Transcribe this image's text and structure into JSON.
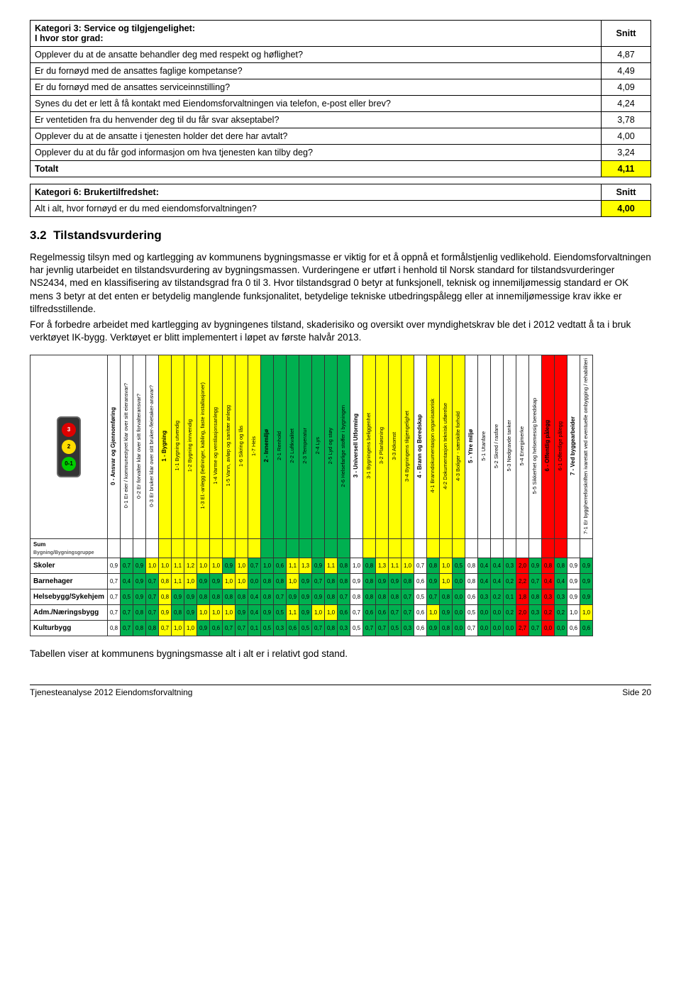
{
  "tableA": {
    "header": {
      "left": "Kategori 3: Service og tilgjengelighet:\nI hvor stor grad:",
      "right": "Snitt"
    },
    "rows": [
      {
        "q": "Opplever du at de ansatte behandler deg med respekt og høflighet?",
        "v": "4,87"
      },
      {
        "q": "Er du fornøyd med de ansattes faglige kompetanse?",
        "v": "4,49"
      },
      {
        "q": "Er du fornøyd med de ansattes serviceinnstilling?",
        "v": "4,09"
      },
      {
        "q": "Synes du det er lett å få kontakt med Eiendomsforvaltningen via telefon, e-post eller brev?",
        "v": "4,24"
      },
      {
        "q": "Er ventetiden fra du henvender deg til du får svar akseptabel?",
        "v": "3,78"
      },
      {
        "q": "Opplever du at de ansatte i tjenesten holder det dere har avtalt?",
        "v": "4,00"
      },
      {
        "q": "Opplever du at du får god informasjon om hva tjenesten kan tilby deg?",
        "v": "3,24"
      }
    ],
    "total": {
      "label": "Totalt",
      "v": "4,11"
    }
  },
  "tableB": {
    "header": {
      "left": "Kategori 6: Brukertilfredshet:",
      "right": "Snitt"
    },
    "rows": [
      {
        "q": "Alt i alt, hvor fornøyd er du med eiendomsforvaltningen?",
        "v": "4,00"
      }
    ]
  },
  "sec": {
    "num": "3.2",
    "title": "Tilstandsvurdering"
  },
  "para1": "Regelmessig tilsyn med og kartlegging av kommunens bygningsmasse er viktig for et å oppnå et formålstjenlig vedlikehold.  Eiendomsforvaltningen har jevnlig utarbeidet en tilstandsvurdering av bygningsmassen.  Vurderingene er utført i henhold til Norsk standard for tilstandsvurderinger NS2434, med en klassifisering av tilstandsgrad fra 0 til 3.  Hvor tilstandsgrad 0 betyr at funksjonell, teknisk og innemiljømessig standard er OK mens 3 betyr at det enten er betydelig manglende funksjonalitet, betydelige tekniske utbedringspålegg eller at innemiljømessige krav ikke er tilfredsstillende.",
  "para2": "For å forbedre arbeidet med kartlegging av bygningenes tilstand, skaderisiko og oversikt over myndighetskrav ble det i 2012 vedtatt å ta i bruk verktøyet IK-bygg.  Verktøyet er blitt implementert i løpet av første halvår 2013.",
  "caption": "Tabellen viser at kommunens bygningsmasse alt i alt er i relativt god stand.",
  "footer": {
    "left": "Tjenesteanalyse 2012 Eiendomsforvaltning",
    "right": "Side 20"
  },
  "heat": {
    "columns": [
      {
        "label": "0 - Ansvar og Gjennomføring",
        "group": true,
        "bg": "#ffffff"
      },
      {
        "label": "0-1 Er eier / kommunestyret klar over sitt eieransvar?",
        "bg": "#ffffff"
      },
      {
        "label": "0-2 Er forvalter klar over sitt forvalteransvar?",
        "bg": "#ffffff"
      },
      {
        "label": "0-3 Er bruker klar over sitt bruker-/leietaker-ansvar?",
        "bg": "#ffffff"
      },
      {
        "label": "1 - Bygning",
        "group": true,
        "bg": "#ffff00"
      },
      {
        "label": "1-1 Bygning utvendig",
        "bg": "#ffff00"
      },
      {
        "label": "1-2 Bygning innvendig",
        "bg": "#ffff00"
      },
      {
        "label": "1-3 El.-anlegg (ledninger, kabling, faste installasjoner)",
        "bg": "#ffff00"
      },
      {
        "label": "1-4 Varme og ventilasjonsanlegg",
        "bg": "#ffff00"
      },
      {
        "label": "1-5 Vann, avløp og sanitær anlegg",
        "bg": "#ffff00"
      },
      {
        "label": "1-6 Sikring og lås",
        "bg": "#ffff00"
      },
      {
        "label": "1-7 Heis",
        "bg": "#ffff00"
      },
      {
        "label": "2 - Innemiljø",
        "group": true,
        "bg": "#00b050"
      },
      {
        "label": "2-1 Renhold",
        "bg": "#00b050"
      },
      {
        "label": "2-2 Luftkvalitet",
        "bg": "#00b050"
      },
      {
        "label": "2-3 Temperatur",
        "bg": "#00b050"
      },
      {
        "label": "2-4 Lys",
        "bg": "#00b050"
      },
      {
        "label": "2-5 Lyd og støy",
        "bg": "#00b050"
      },
      {
        "label": "2-6 Helsefarlige stoffer i bygningen",
        "bg": "#00b050"
      },
      {
        "label": "3 - Universell Utforming",
        "group": true,
        "bg": "#ffffff"
      },
      {
        "label": "3-1 Bygningens beliggenhet",
        "bg": "#ffff00"
      },
      {
        "label": "3-2 Planløsning",
        "bg": "#ffff00"
      },
      {
        "label": "3-3 Atkomst",
        "bg": "#ffff00"
      },
      {
        "label": "3-4 Bygningens tilgjengelighet",
        "bg": "#ffff00"
      },
      {
        "label": "4 - Brann og Beredskap",
        "group": true,
        "bg": "#ffffff"
      },
      {
        "label": "4-1 Branndokumentasjon organisatorisk",
        "bg": "#ffff00"
      },
      {
        "label": "4-2 Dokumentasjon teknisk utførelse",
        "bg": "#ffff00"
      },
      {
        "label": "4-3 Boliger - særskilte forhold",
        "bg": "#ffff00"
      },
      {
        "label": "5 - Ytre miljø",
        "group": true,
        "bg": "#ffffff"
      },
      {
        "label": "5-1 Utanfare",
        "bg": "#ffffff"
      },
      {
        "label": "5-2 Skred / rasfare",
        "bg": "#ffffff"
      },
      {
        "label": "5-3 Nedgravde tanker",
        "bg": "#ffffff"
      },
      {
        "label": "5-4 Energimerke",
        "bg": "#ffffff"
      },
      {
        "label": "5-5 Sikkerhet og helsemessig beredskap",
        "bg": "#ffffff"
      },
      {
        "label": "6 - Offentlig pålegg",
        "group": true,
        "bg": "#ff0000"
      },
      {
        "label": "6-1 Offentlige pålegg",
        "bg": "#ff0000"
      },
      {
        "label": "7 - Ved byggearbeider",
        "group": true,
        "bg": "#ffffff"
      },
      {
        "label": "7-1 Er byggherreforskriften ivaretatt ved eventuelle ombygging / rehabiliteri",
        "bg": "#ffffff"
      }
    ],
    "rows": [
      {
        "name": "Skoler",
        "v": [
          "0,9",
          "0,7",
          "0,9",
          "1,0",
          "1,0",
          "1,1",
          "1,2",
          "1,0",
          "1,0",
          "0,9",
          "1,0",
          "0,7",
          "1,0",
          "0,6",
          "1,1",
          "1,3",
          "0,9",
          "1,1",
          "0,8",
          "1,0",
          "0,8",
          "1,3",
          "1,1",
          "1,0",
          "0,7",
          "0,8",
          "1,0",
          "0,5",
          "0,8",
          "0,4",
          "0,4",
          "0,3",
          "2,0",
          "0,9",
          "0,8",
          "0,8",
          "0,9",
          "0,9"
        ]
      },
      {
        "name": "Barnehager",
        "v": [
          "0,7",
          "0,4",
          "0,9",
          "0,7",
          "0,8",
          "1,1",
          "1,0",
          "0,9",
          "0,9",
          "1,0",
          "1,0",
          "0,0",
          "0,8",
          "0,8",
          "1,0",
          "0,9",
          "0,7",
          "0,8",
          "0,8",
          "0,9",
          "0,8",
          "0,9",
          "0,9",
          "0,8",
          "0,6",
          "0,9",
          "1,0",
          "0,0",
          "0,8",
          "0,4",
          "0,4",
          "0,2",
          "2,2",
          "0,7",
          "0,4",
          "0,4",
          "0,9",
          "0,9"
        ]
      },
      {
        "name": "Helsebygg/Sykehjem",
        "v": [
          "0,7",
          "0,5",
          "0,9",
          "0,7",
          "0,8",
          "0,9",
          "0,9",
          "0,8",
          "0,8",
          "0,8",
          "0,8",
          "0,4",
          "0,8",
          "0,7",
          "0,9",
          "0,9",
          "0,9",
          "0,8",
          "0,7",
          "0,8",
          "0,8",
          "0,8",
          "0,8",
          "0,7",
          "0,5",
          "0,7",
          "0,8",
          "0,0",
          "0,6",
          "0,3",
          "0,2",
          "0,1",
          "1,8",
          "0,8",
          "0,3",
          "0,3",
          "0,9",
          "0,9"
        ]
      },
      {
        "name": "Adm./Næringsbygg",
        "v": [
          "0,7",
          "0,7",
          "0,8",
          "0,7",
          "0,9",
          "0,8",
          "0,9",
          "1,0",
          "1,0",
          "1,0",
          "0,9",
          "0,4",
          "0,9",
          "0,5",
          "1,1",
          "0,9",
          "1,0",
          "1,0",
          "0,6",
          "0,7",
          "0,6",
          "0,6",
          "0,7",
          "0,7",
          "0,6",
          "1,0",
          "0,9",
          "0,0",
          "0,5",
          "0,0",
          "0,0",
          "0,2",
          "2,0",
          "0,3",
          "0,2",
          "0,2",
          "1,0",
          "1,0"
        ]
      },
      {
        "name": "Kulturbygg",
        "v": [
          "0,8",
          "0,7",
          "0,8",
          "0,8",
          "0,7",
          "1,0",
          "1,0",
          "0,9",
          "0,6",
          "0,7",
          "0,7",
          "0,1",
          "0,5",
          "0,3",
          "0,6",
          "0,5",
          "0,7",
          "0,8",
          "0,3",
          "0,5",
          "0,7",
          "0,7",
          "0,5",
          "0,3",
          "0,6",
          "0,9",
          "0,8",
          "0,0",
          "0,7",
          "0,0",
          "0,0",
          "0,0",
          "2,7",
          "0,7",
          "0,0",
          "0,0",
          "0,6",
          "0,6"
        ]
      }
    ],
    "sumLabel": "Sum",
    "subLabel": "Bygning/Bygningsgruppe"
  }
}
